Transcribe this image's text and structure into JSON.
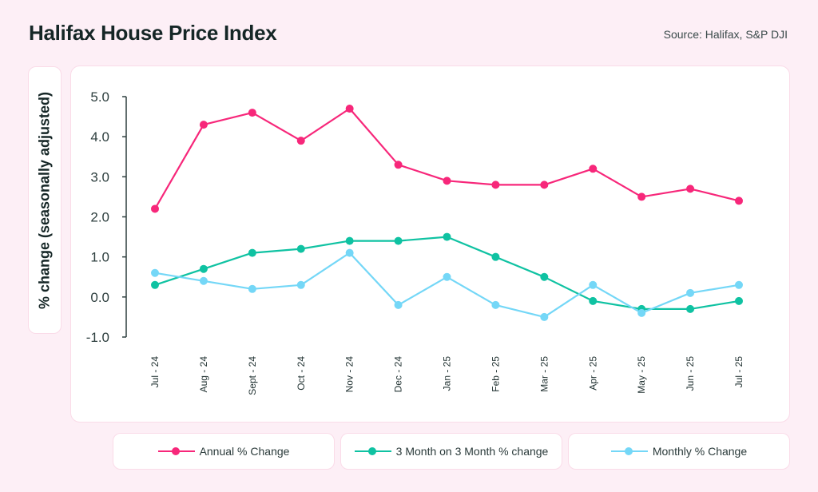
{
  "header": {
    "title": "Halifax House Price Index",
    "source": "Source: Halifax, S&P DJI"
  },
  "colors": {
    "annual": "#f7277a",
    "three_month": "#0fc2a2",
    "monthly": "#74d7f7",
    "axis": "#2e3f3f"
  },
  "chart_data": {
    "type": "line",
    "title": "Halifax House Price Index",
    "xlabel": "",
    "ylabel": "% change (seasonally adjusted)",
    "ylim": [
      -1.0,
      5.0
    ],
    "yticks": [
      "5.0",
      "4.0",
      "3.0",
      "2.0",
      "1.0",
      "0.0",
      "-1.0"
    ],
    "ytick_values": [
      5,
      4,
      3,
      2,
      1,
      0,
      -1
    ],
    "grid": false,
    "legend_position": "bottom",
    "categories": [
      "Jul - 24",
      "Aug - 24",
      "Sept - 24",
      "Oct - 24",
      "Nov - 24",
      "Dec - 24",
      "Jan - 25",
      "Feb - 25",
      "Mar - 25",
      "Apr - 25",
      "May - 25",
      "Jun - 25",
      "Jul - 25"
    ],
    "series": [
      {
        "name": "Annual % Change",
        "color_key": "annual",
        "values": [
          2.2,
          4.3,
          4.6,
          3.9,
          4.7,
          3.3,
          2.9,
          2.8,
          2.8,
          3.2,
          2.5,
          2.7,
          2.4
        ]
      },
      {
        "name": "3 Month on 3 Month % change",
        "color_key": "three_month",
        "values": [
          0.3,
          0.7,
          1.1,
          1.2,
          1.4,
          1.4,
          1.5,
          1.0,
          0.5,
          -0.1,
          -0.3,
          -0.3,
          -0.1
        ]
      },
      {
        "name": "Monthly % Change",
        "color_key": "monthly",
        "values": [
          0.6,
          0.4,
          0.2,
          0.3,
          1.1,
          -0.2,
          0.5,
          -0.2,
          -0.5,
          0.3,
          -0.4,
          0.1,
          0.3
        ]
      }
    ]
  }
}
